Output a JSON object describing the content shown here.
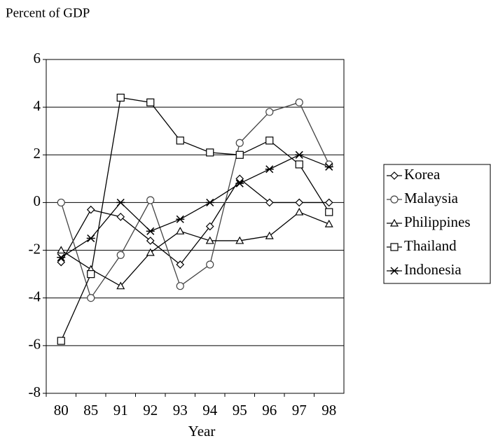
{
  "chart_data": {
    "type": "line",
    "title": "Percent of GDP",
    "x_label": "Year",
    "categories": [
      "80",
      "85",
      "91",
      "92",
      "93",
      "94",
      "95",
      "96",
      "97",
      "98"
    ],
    "ylim": [
      -8,
      6
    ],
    "yticks": [
      -8,
      -6,
      -4,
      -2,
      0,
      2,
      4,
      6
    ],
    "grid": true,
    "legend": "right",
    "series": [
      {
        "name": "Korea",
        "color": "#000000",
        "marker": "diamond",
        "values": [
          -2.5,
          -0.3,
          -0.6,
          -1.6,
          -2.6,
          -1,
          1,
          0,
          0,
          0
        ]
      },
      {
        "name": "Malaysia",
        "color": "#444444",
        "marker": "circle",
        "values": [
          0,
          -4,
          -2.2,
          0.1,
          -3.5,
          -2.6,
          2.5,
          3.8,
          4.2,
          1.6
        ]
      },
      {
        "name": "Philippines",
        "color": "#000000",
        "marker": "triangle",
        "values": [
          -2,
          -2.8,
          -3.5,
          -2.1,
          -1.2,
          -1.6,
          -1.6,
          -1.4,
          -0.4,
          -0.9
        ]
      },
      {
        "name": "Thailand",
        "color": "#000000",
        "marker": "square",
        "values": [
          -5.8,
          -3,
          4.4,
          4.2,
          2.6,
          2.1,
          2,
          2.6,
          1.6,
          -0.4
        ]
      },
      {
        "name": "Indonesia",
        "color": "#000000",
        "marker": "star",
        "values": [
          -2.3,
          -1.5,
          0,
          -1.2,
          -0.7,
          0,
          0.8,
          1.4,
          2,
          1.5
        ]
      }
    ]
  }
}
